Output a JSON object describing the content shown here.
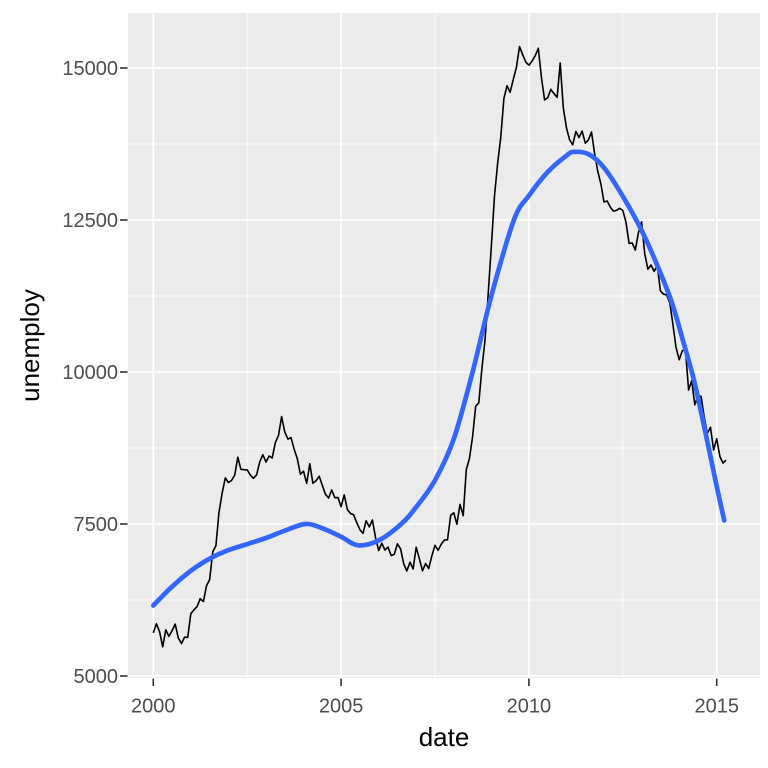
{
  "figure": {
    "background": "#FFFFFF",
    "panel_background": "#EBEBEB",
    "grid_color": "#FFFFFF",
    "tick_mark_color": "#333333",
    "tick_label_color": "#4D4D4D",
    "axis_title_color": "#000000",
    "raw_line_color": "#000000",
    "smooth_line_color": "#3366FF"
  },
  "chart_data": {
    "type": "line",
    "title": "",
    "xlabel": "date",
    "ylabel": "unemploy",
    "legend": "none",
    "grid": true,
    "x_tick_labels": [
      "2000",
      "2005",
      "2010",
      "2015"
    ],
    "x_tick_years": [
      2000,
      2005,
      2010,
      2015
    ],
    "x_minor_years": [
      2002.5,
      2007.5,
      2012.5
    ],
    "y_tick_labels": [
      "5000",
      "7500",
      "10000",
      "12500",
      "15000"
    ],
    "y_tick_values": [
      5000,
      7500,
      10000,
      12500,
      15000
    ],
    "y_minor_values": [
      6250,
      8750,
      11250,
      13750
    ],
    "x_range_years": [
      1999.327,
      2016.152
    ],
    "y_range": [
      4967,
      15905
    ],
    "series": [
      {
        "name": "unemploy",
        "kind": "raw-monthly-line",
        "color": "#000000",
        "stroke_width": 1.6,
        "start_year": 2000,
        "interval_months": 1,
        "values": [
          5708,
          5858,
          5733,
          5481,
          5758,
          5651,
          5747,
          5853,
          5625,
          5534,
          5639,
          5634,
          6023,
          6089,
          6141,
          6271,
          6226,
          6484,
          6583,
          7042,
          7142,
          7694,
          8003,
          8258,
          8182,
          8215,
          8304,
          8599,
          8399,
          8393,
          8390,
          8304,
          8251,
          8307,
          8520,
          8640,
          8520,
          8618,
          8588,
          8842,
          8957,
          9266,
          9011,
          8896,
          8921,
          8732,
          8576,
          8317,
          8370,
          8167,
          8491,
          8170,
          8212,
          8286,
          8136,
          7990,
          7927,
          8061,
          7932,
          7934,
          7784,
          7980,
          7737,
          7672,
          7651,
          7524,
          7406,
          7345,
          7553,
          7453,
          7566,
          7279,
          7064,
          7184,
          7072,
          7120,
          6980,
          7001,
          7175,
          7091,
          6847,
          6727,
          6872,
          6762,
          7116,
          6927,
          6731,
          6850,
          6766,
          6979,
          7149,
          7067,
          7170,
          7237,
          7240,
          7645,
          7685,
          7497,
          7822,
          7637,
          8395,
          8575,
          8937,
          9438,
          9494,
          10074,
          10538,
          11286,
          12058,
          12898,
          13426,
          13853,
          14499,
          14707,
          14601,
          14814,
          15009,
          15352,
          15219,
          15098,
          15046,
          15113,
          15202,
          15325,
          14849,
          14474,
          14512,
          14648,
          14579,
          14516,
          15081,
          14348,
          14013,
          13820,
          13737,
          13957,
          13855,
          13962,
          13763,
          13818,
          13948,
          13594,
          13302,
          13093,
          12797,
          12813,
          12713,
          12646,
          12660,
          12692,
          12656,
          12471,
          12115,
          12124,
          12005,
          12298,
          12471,
          11950,
          11689,
          11760,
          11654,
          11751,
          11335,
          11279,
          11270,
          11136,
          10787,
          10404,
          10202,
          10349,
          10380,
          9702,
          9859,
          9460,
          9608,
          9599,
          9262,
          8990,
          9090,
          8717,
          8903,
          8610,
          8504,
          8549
        ]
      },
      {
        "name": "loess-smooth",
        "kind": "smooth-line",
        "color": "#3366FF",
        "stroke_width": 4.7,
        "points": [
          [
            2000.0,
            6160
          ],
          [
            2000.5,
            6470
          ],
          [
            2001.0,
            6730
          ],
          [
            2001.5,
            6930
          ],
          [
            2002.0,
            7070
          ],
          [
            2002.5,
            7170
          ],
          [
            2003.0,
            7270
          ],
          [
            2003.5,
            7390
          ],
          [
            2004.05,
            7500
          ],
          [
            2004.5,
            7430
          ],
          [
            2005.0,
            7290
          ],
          [
            2005.45,
            7150
          ],
          [
            2006.0,
            7230
          ],
          [
            2006.6,
            7500
          ],
          [
            2007.0,
            7780
          ],
          [
            2007.5,
            8220
          ],
          [
            2008.0,
            8900
          ],
          [
            2008.5,
            10000
          ],
          [
            2009.0,
            11250
          ],
          [
            2009.6,
            12500
          ],
          [
            2010.0,
            12900
          ],
          [
            2010.5,
            13290
          ],
          [
            2011.0,
            13560
          ],
          [
            2011.2,
            13620
          ],
          [
            2011.6,
            13580
          ],
          [
            2012.0,
            13360
          ],
          [
            2012.5,
            12890
          ],
          [
            2013.0,
            12330
          ],
          [
            2013.4,
            11780
          ],
          [
            2013.8,
            11150
          ],
          [
            2014.1,
            10520
          ],
          [
            2014.4,
            9850
          ],
          [
            2014.7,
            9000
          ],
          [
            2015.0,
            8120
          ],
          [
            2015.2,
            7560
          ]
        ]
      }
    ]
  }
}
